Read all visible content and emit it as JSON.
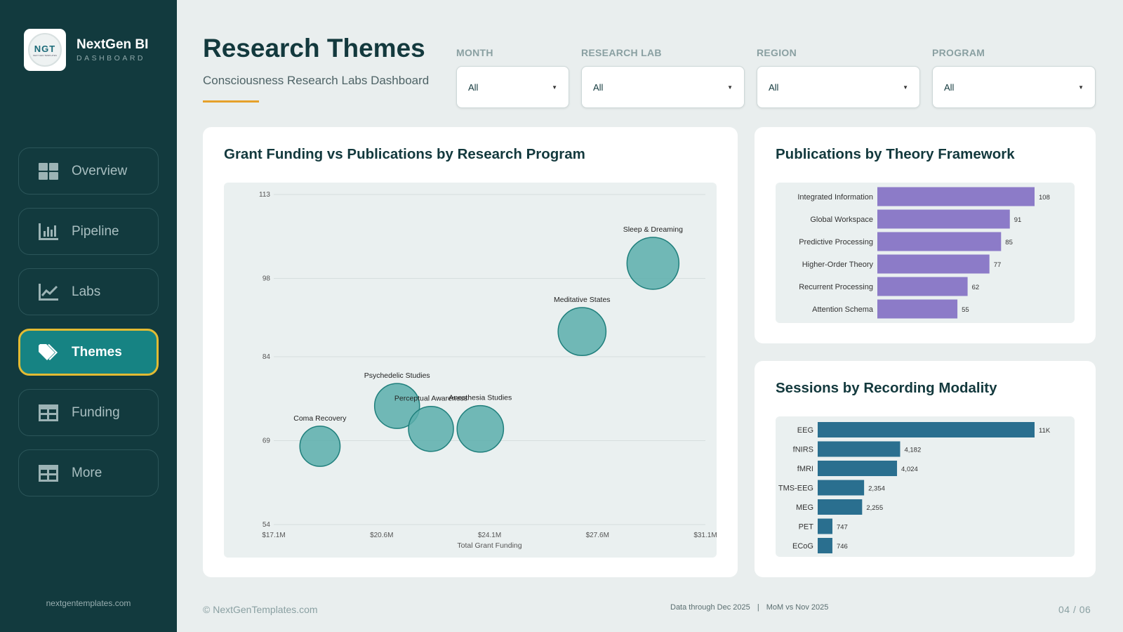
{
  "brand": {
    "name": "NextGen BI",
    "sub": "DASHBOARD",
    "logo_text": "NGT",
    "logo_sub": "NEXT GEN TEMPLATES"
  },
  "nav": [
    {
      "label": "Overview",
      "icon": "grid-icon",
      "active": false
    },
    {
      "label": "Pipeline",
      "icon": "bar-chart-icon",
      "active": false
    },
    {
      "label": "Labs",
      "icon": "line-chart-icon",
      "active": false
    },
    {
      "label": "Themes",
      "icon": "tag-icon",
      "active": true
    },
    {
      "label": "Funding",
      "icon": "table-icon",
      "active": false
    },
    {
      "label": "More",
      "icon": "table-icon",
      "active": false
    }
  ],
  "site": "nextgentemplates.com",
  "header": {
    "title": "Research Themes",
    "subtitle": "Consciousness Research Labs Dashboard"
  },
  "filters": [
    {
      "label": "MONTH",
      "value": "All"
    },
    {
      "label": "RESEARCH LAB",
      "value": "All"
    },
    {
      "label": "REGION",
      "value": "All"
    },
    {
      "label": "PROGRAM",
      "value": "All"
    }
  ],
  "cards": {
    "bubble_title": "Grant Funding vs Publications by Research Program",
    "theory_title": "Publications by Theory Framework",
    "modality_title": "Sessions by Recording Modality"
  },
  "chart_data": [
    {
      "type": "scatter",
      "title": "Grant Funding vs Publications by Research Program",
      "xlabel": "Total Grant Funding",
      "ylabel": "",
      "x_ticks": [
        "$17.1M",
        "$20.6M",
        "$24.1M",
        "$27.6M",
        "$31.1M"
      ],
      "y_ticks": [
        54,
        69,
        84,
        98,
        113
      ],
      "xlim": [
        17.1,
        31.1
      ],
      "ylim": [
        54,
        113
      ],
      "grid": true,
      "points": [
        {
          "label": "Coma Recovery",
          "x": 18.6,
          "y": 68.0,
          "size": 0.6
        },
        {
          "label": "Psychedelic Studies",
          "x": 21.1,
          "y": 75.2,
          "size": 0.75
        },
        {
          "label": "Perceptual Awareness",
          "x": 22.2,
          "y": 71.1,
          "size": 0.75
        },
        {
          "label": "Anesthesia Studies",
          "x": 23.8,
          "y": 71.1,
          "size": 0.8
        },
        {
          "label": "Meditative States",
          "x": 27.1,
          "y": 88.5,
          "size": 0.85
        },
        {
          "label": "Sleep & Dreaming",
          "x": 29.4,
          "y": 100.7,
          "size": 1.0
        }
      ]
    },
    {
      "type": "bar",
      "orientation": "horizontal",
      "title": "Publications by Theory Framework",
      "categories": [
        "Integrated Information",
        "Global Workspace",
        "Predictive Processing",
        "Higher-Order Theory",
        "Recurrent Processing",
        "Attention Schema"
      ],
      "values": [
        108,
        91,
        85,
        77,
        62,
        55
      ],
      "labels": [
        "108",
        "91",
        "85",
        "77",
        "62",
        "55"
      ],
      "color": "#8c7bc8"
    },
    {
      "type": "bar",
      "orientation": "horizontal",
      "title": "Sessions by Recording Modality",
      "categories": [
        "EEG",
        "fNIRS",
        "fMRI",
        "TMS-EEG",
        "MEG",
        "PET",
        "ECoG"
      ],
      "values": [
        11000,
        4182,
        4024,
        2354,
        2255,
        747,
        746
      ],
      "labels": [
        "11K",
        "4,182",
        "4,024",
        "2,354",
        "2,255",
        "747",
        "746"
      ],
      "color": "#2a6f8f"
    }
  ],
  "footer": {
    "copyright": "© NextGenTemplates.com",
    "data_through": "Data through Dec 2025",
    "separator": "|",
    "mom": "MoM vs Nov 2025",
    "page": "04  /  06"
  },
  "colors": {
    "sidebar": "#123a3e",
    "accent": "#168383",
    "active_border": "#e2bb33",
    "underline": "#e5a12b",
    "bubble": "#5aaeac"
  }
}
